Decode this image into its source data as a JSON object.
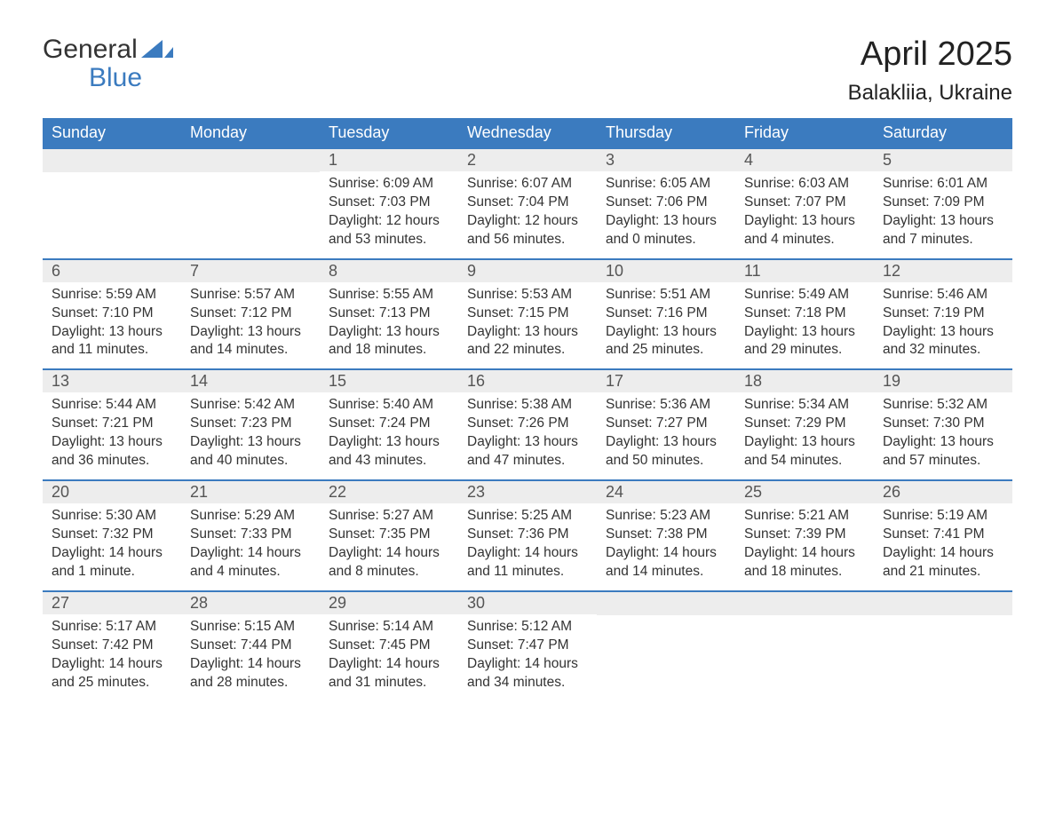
{
  "logo": {
    "general": "General",
    "blue": "Blue",
    "icon_color": "#3b7bbf"
  },
  "title": "April 2025",
  "location": "Balakliia, Ukraine",
  "weekdays": [
    "Sunday",
    "Monday",
    "Tuesday",
    "Wednesday",
    "Thursday",
    "Friday",
    "Saturday"
  ],
  "colors": {
    "header_bg": "#3b7bbf",
    "header_text": "#ffffff",
    "daynum_bg": "#ededed",
    "row_border": "#3b7bbf",
    "text": "#333333"
  },
  "weeks": [
    [
      {
        "empty": true
      },
      {
        "empty": true
      },
      {
        "day": "1",
        "sunrise": "Sunrise: 6:09 AM",
        "sunset": "Sunset: 7:03 PM",
        "daylight1": "Daylight: 12 hours",
        "daylight2": "and 53 minutes."
      },
      {
        "day": "2",
        "sunrise": "Sunrise: 6:07 AM",
        "sunset": "Sunset: 7:04 PM",
        "daylight1": "Daylight: 12 hours",
        "daylight2": "and 56 minutes."
      },
      {
        "day": "3",
        "sunrise": "Sunrise: 6:05 AM",
        "sunset": "Sunset: 7:06 PM",
        "daylight1": "Daylight: 13 hours",
        "daylight2": "and 0 minutes."
      },
      {
        "day": "4",
        "sunrise": "Sunrise: 6:03 AM",
        "sunset": "Sunset: 7:07 PM",
        "daylight1": "Daylight: 13 hours",
        "daylight2": "and 4 minutes."
      },
      {
        "day": "5",
        "sunrise": "Sunrise: 6:01 AM",
        "sunset": "Sunset: 7:09 PM",
        "daylight1": "Daylight: 13 hours",
        "daylight2": "and 7 minutes."
      }
    ],
    [
      {
        "day": "6",
        "sunrise": "Sunrise: 5:59 AM",
        "sunset": "Sunset: 7:10 PM",
        "daylight1": "Daylight: 13 hours",
        "daylight2": "and 11 minutes."
      },
      {
        "day": "7",
        "sunrise": "Sunrise: 5:57 AM",
        "sunset": "Sunset: 7:12 PM",
        "daylight1": "Daylight: 13 hours",
        "daylight2": "and 14 minutes."
      },
      {
        "day": "8",
        "sunrise": "Sunrise: 5:55 AM",
        "sunset": "Sunset: 7:13 PM",
        "daylight1": "Daylight: 13 hours",
        "daylight2": "and 18 minutes."
      },
      {
        "day": "9",
        "sunrise": "Sunrise: 5:53 AM",
        "sunset": "Sunset: 7:15 PM",
        "daylight1": "Daylight: 13 hours",
        "daylight2": "and 22 minutes."
      },
      {
        "day": "10",
        "sunrise": "Sunrise: 5:51 AM",
        "sunset": "Sunset: 7:16 PM",
        "daylight1": "Daylight: 13 hours",
        "daylight2": "and 25 minutes."
      },
      {
        "day": "11",
        "sunrise": "Sunrise: 5:49 AM",
        "sunset": "Sunset: 7:18 PM",
        "daylight1": "Daylight: 13 hours",
        "daylight2": "and 29 minutes."
      },
      {
        "day": "12",
        "sunrise": "Sunrise: 5:46 AM",
        "sunset": "Sunset: 7:19 PM",
        "daylight1": "Daylight: 13 hours",
        "daylight2": "and 32 minutes."
      }
    ],
    [
      {
        "day": "13",
        "sunrise": "Sunrise: 5:44 AM",
        "sunset": "Sunset: 7:21 PM",
        "daylight1": "Daylight: 13 hours",
        "daylight2": "and 36 minutes."
      },
      {
        "day": "14",
        "sunrise": "Sunrise: 5:42 AM",
        "sunset": "Sunset: 7:23 PM",
        "daylight1": "Daylight: 13 hours",
        "daylight2": "and 40 minutes."
      },
      {
        "day": "15",
        "sunrise": "Sunrise: 5:40 AM",
        "sunset": "Sunset: 7:24 PM",
        "daylight1": "Daylight: 13 hours",
        "daylight2": "and 43 minutes."
      },
      {
        "day": "16",
        "sunrise": "Sunrise: 5:38 AM",
        "sunset": "Sunset: 7:26 PM",
        "daylight1": "Daylight: 13 hours",
        "daylight2": "and 47 minutes."
      },
      {
        "day": "17",
        "sunrise": "Sunrise: 5:36 AM",
        "sunset": "Sunset: 7:27 PM",
        "daylight1": "Daylight: 13 hours",
        "daylight2": "and 50 minutes."
      },
      {
        "day": "18",
        "sunrise": "Sunrise: 5:34 AM",
        "sunset": "Sunset: 7:29 PM",
        "daylight1": "Daylight: 13 hours",
        "daylight2": "and 54 minutes."
      },
      {
        "day": "19",
        "sunrise": "Sunrise: 5:32 AM",
        "sunset": "Sunset: 7:30 PM",
        "daylight1": "Daylight: 13 hours",
        "daylight2": "and 57 minutes."
      }
    ],
    [
      {
        "day": "20",
        "sunrise": "Sunrise: 5:30 AM",
        "sunset": "Sunset: 7:32 PM",
        "daylight1": "Daylight: 14 hours",
        "daylight2": "and 1 minute."
      },
      {
        "day": "21",
        "sunrise": "Sunrise: 5:29 AM",
        "sunset": "Sunset: 7:33 PM",
        "daylight1": "Daylight: 14 hours",
        "daylight2": "and 4 minutes."
      },
      {
        "day": "22",
        "sunrise": "Sunrise: 5:27 AM",
        "sunset": "Sunset: 7:35 PM",
        "daylight1": "Daylight: 14 hours",
        "daylight2": "and 8 minutes."
      },
      {
        "day": "23",
        "sunrise": "Sunrise: 5:25 AM",
        "sunset": "Sunset: 7:36 PM",
        "daylight1": "Daylight: 14 hours",
        "daylight2": "and 11 minutes."
      },
      {
        "day": "24",
        "sunrise": "Sunrise: 5:23 AM",
        "sunset": "Sunset: 7:38 PM",
        "daylight1": "Daylight: 14 hours",
        "daylight2": "and 14 minutes."
      },
      {
        "day": "25",
        "sunrise": "Sunrise: 5:21 AM",
        "sunset": "Sunset: 7:39 PM",
        "daylight1": "Daylight: 14 hours",
        "daylight2": "and 18 minutes."
      },
      {
        "day": "26",
        "sunrise": "Sunrise: 5:19 AM",
        "sunset": "Sunset: 7:41 PM",
        "daylight1": "Daylight: 14 hours",
        "daylight2": "and 21 minutes."
      }
    ],
    [
      {
        "day": "27",
        "sunrise": "Sunrise: 5:17 AM",
        "sunset": "Sunset: 7:42 PM",
        "daylight1": "Daylight: 14 hours",
        "daylight2": "and 25 minutes."
      },
      {
        "day": "28",
        "sunrise": "Sunrise: 5:15 AM",
        "sunset": "Sunset: 7:44 PM",
        "daylight1": "Daylight: 14 hours",
        "daylight2": "and 28 minutes."
      },
      {
        "day": "29",
        "sunrise": "Sunrise: 5:14 AM",
        "sunset": "Sunset: 7:45 PM",
        "daylight1": "Daylight: 14 hours",
        "daylight2": "and 31 minutes."
      },
      {
        "day": "30",
        "sunrise": "Sunrise: 5:12 AM",
        "sunset": "Sunset: 7:47 PM",
        "daylight1": "Daylight: 14 hours",
        "daylight2": "and 34 minutes."
      },
      {
        "empty": true
      },
      {
        "empty": true
      },
      {
        "empty": true
      }
    ]
  ]
}
